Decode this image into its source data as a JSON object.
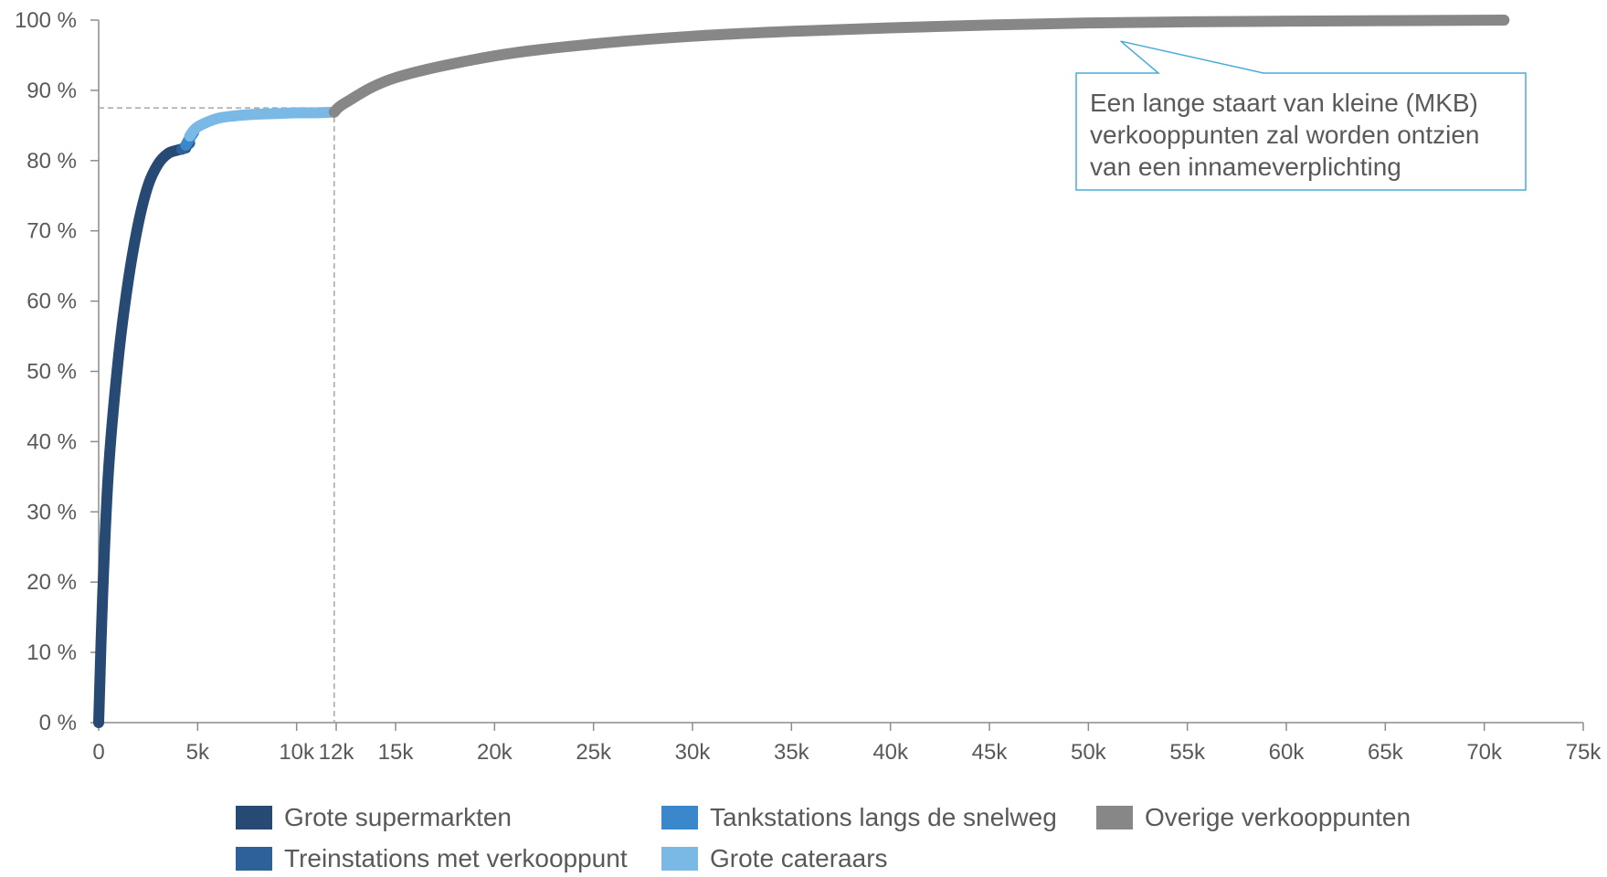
{
  "chart_data": {
    "type": "line",
    "xlabel": "",
    "ylabel": "",
    "xlim": [
      0,
      75000
    ],
    "ylim": [
      0,
      100
    ],
    "x_ticks": [
      0,
      5000,
      10000,
      12000,
      15000,
      20000,
      25000,
      30000,
      35000,
      40000,
      45000,
      50000,
      55000,
      60000,
      65000,
      70000,
      75000
    ],
    "x_tick_labels": [
      "0",
      "5k",
      "10k",
      "12k",
      "15k",
      "20k",
      "25k",
      "30k",
      "35k",
      "40k",
      "45k",
      "50k",
      "55k",
      "60k",
      "65k",
      "70k",
      "75k"
    ],
    "y_ticks": [
      0,
      10,
      20,
      30,
      40,
      50,
      60,
      70,
      80,
      90,
      100
    ],
    "y_tick_labels": [
      "0 %",
      "10 %",
      "20 %",
      "30 %",
      "40 %",
      "50 %",
      "60 %",
      "70 %",
      "80 %",
      "90 %",
      "100 %"
    ],
    "grid": false,
    "legend_position": "bottom",
    "reference_lines": {
      "x": 11900,
      "y": 87.5
    },
    "series": [
      {
        "name": "Grote supermarkten",
        "color": "#264a74",
        "x": [
          0,
          200,
          500,
          1000,
          1500,
          2000,
          2500,
          3000,
          3500,
          4000,
          4400
        ],
        "y": [
          0,
          18,
          36,
          52,
          63,
          71,
          76.5,
          79.5,
          81,
          81.5,
          81.8
        ]
      },
      {
        "name": "Treinstations met verkooppunt",
        "color": "#2e6199",
        "x": [
          4200,
          4400,
          4600
        ],
        "y": [
          81.6,
          82,
          82.5
        ]
      },
      {
        "name": "Tankstations langs de snelweg",
        "color": "#3b87cb",
        "x": [
          4400,
          4600,
          4800
        ],
        "y": [
          82.2,
          83.2,
          84
        ]
      },
      {
        "name": "Grote cateraars",
        "color": "#7ab8e6",
        "x": [
          4600,
          5000,
          6000,
          7000,
          8000,
          9000,
          10000,
          11000,
          11900
        ],
        "y": [
          83.5,
          84.8,
          86.0,
          86.4,
          86.6,
          86.7,
          86.8,
          86.8,
          86.9
        ]
      },
      {
        "name": "Overige verkooppunten",
        "color": "#878787",
        "x": [
          11900,
          12500,
          15000,
          20000,
          25000,
          30000,
          35000,
          40000,
          45000,
          50000,
          55000,
          60000,
          65000,
          71000
        ],
        "y": [
          86.9,
          88.3,
          91.8,
          94.9,
          96.6,
          97.7,
          98.4,
          98.9,
          99.3,
          99.6,
          99.75,
          99.85,
          99.92,
          100
        ]
      }
    ],
    "annotation": {
      "text_lines": [
        "Een lange staart van kleine (MKB)",
        "verkooppunten zal worden ontzien",
        "van een innameverplichting"
      ],
      "target_x": 52000,
      "target_y": 99.6,
      "border_color": "#4aabd6"
    }
  },
  "legend": {
    "items": [
      {
        "label": "Grote supermarkten",
        "color": "#264a74"
      },
      {
        "label": "Tankstations langs de snelweg",
        "color": "#3b87cb"
      },
      {
        "label": "Overige verkooppunten",
        "color": "#878787"
      },
      {
        "label": "Treinstations met verkooppunt",
        "color": "#2e6199"
      },
      {
        "label": "Grote cateraars",
        "color": "#7ab8e6"
      }
    ]
  }
}
